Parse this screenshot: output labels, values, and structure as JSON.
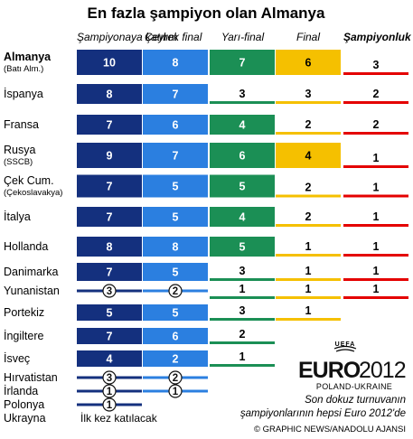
{
  "title": "En fazla şampiyon olan Almanya",
  "colors": {
    "participation": "#14307e",
    "quarter": "#2b7fe0",
    "semi": "#1b8f55",
    "final": "#f5c000",
    "champion": "#e40000",
    "circle_fill": "#ffffff"
  },
  "chart_data": {
    "type": "table",
    "columns": [
      "Şampiyonaya katılım",
      "Çeyrek final",
      "Yarı-final",
      "Final",
      "Şampiyonluk"
    ],
    "rows": [
      {
        "country": "Almanya",
        "sub": "(Batı Alm.)",
        "values": [
          10,
          8,
          7,
          6,
          3
        ]
      },
      {
        "country": "İspanya",
        "sub": "",
        "values": [
          8,
          7,
          3,
          3,
          2
        ]
      },
      {
        "country": "Fransa",
        "sub": "",
        "values": [
          7,
          6,
          4,
          2,
          2
        ]
      },
      {
        "country": "Rusya",
        "sub": "(SSCB)",
        "values": [
          9,
          7,
          6,
          4,
          1
        ]
      },
      {
        "country": "Çek Cum.",
        "sub": "(Çekoslavakya)",
        "values": [
          7,
          5,
          5,
          2,
          1
        ]
      },
      {
        "country": "İtalya",
        "sub": "",
        "values": [
          7,
          5,
          4,
          2,
          1
        ]
      },
      {
        "country": "Hollanda",
        "sub": "",
        "values": [
          8,
          8,
          5,
          1,
          1
        ]
      },
      {
        "country": "Danimarka",
        "sub": "",
        "values": [
          7,
          5,
          3,
          1,
          1
        ]
      },
      {
        "country": "Yunanistan",
        "sub": "",
        "values": [
          3,
          2,
          1,
          1,
          1
        ]
      },
      {
        "country": "Portekiz",
        "sub": "",
        "values": [
          5,
          5,
          3,
          1,
          null
        ]
      },
      {
        "country": "İngiltere",
        "sub": "",
        "values": [
          7,
          6,
          2,
          null,
          null
        ]
      },
      {
        "country": "İsveç",
        "sub": "",
        "values": [
          4,
          2,
          1,
          null,
          null
        ]
      },
      {
        "country": "Hırvatistan",
        "sub": "",
        "values": [
          3,
          2,
          null,
          null,
          null
        ]
      },
      {
        "country": "İrlanda",
        "sub": "",
        "values": [
          1,
          1,
          null,
          null,
          null
        ]
      },
      {
        "country": "Polonya",
        "sub": "",
        "values": [
          1,
          null,
          null,
          null,
          null
        ]
      },
      {
        "country": "Ukrayna",
        "sub": "",
        "values": [
          null,
          null,
          null,
          null,
          null
        ]
      }
    ],
    "legend_first_time": "İlk kez katılacak"
  },
  "logo": {
    "uefa": "UEFA",
    "euro": "EURO",
    "year": "2012",
    "hosts": "POLAND-UKRAINE"
  },
  "note_line1": "Son dokuz turnuvanın",
  "note_line2": "şampiyonlarının hepsi Euro 2012'de",
  "credit": "© GRAPHIC NEWS/ANADOLU AJANSI"
}
